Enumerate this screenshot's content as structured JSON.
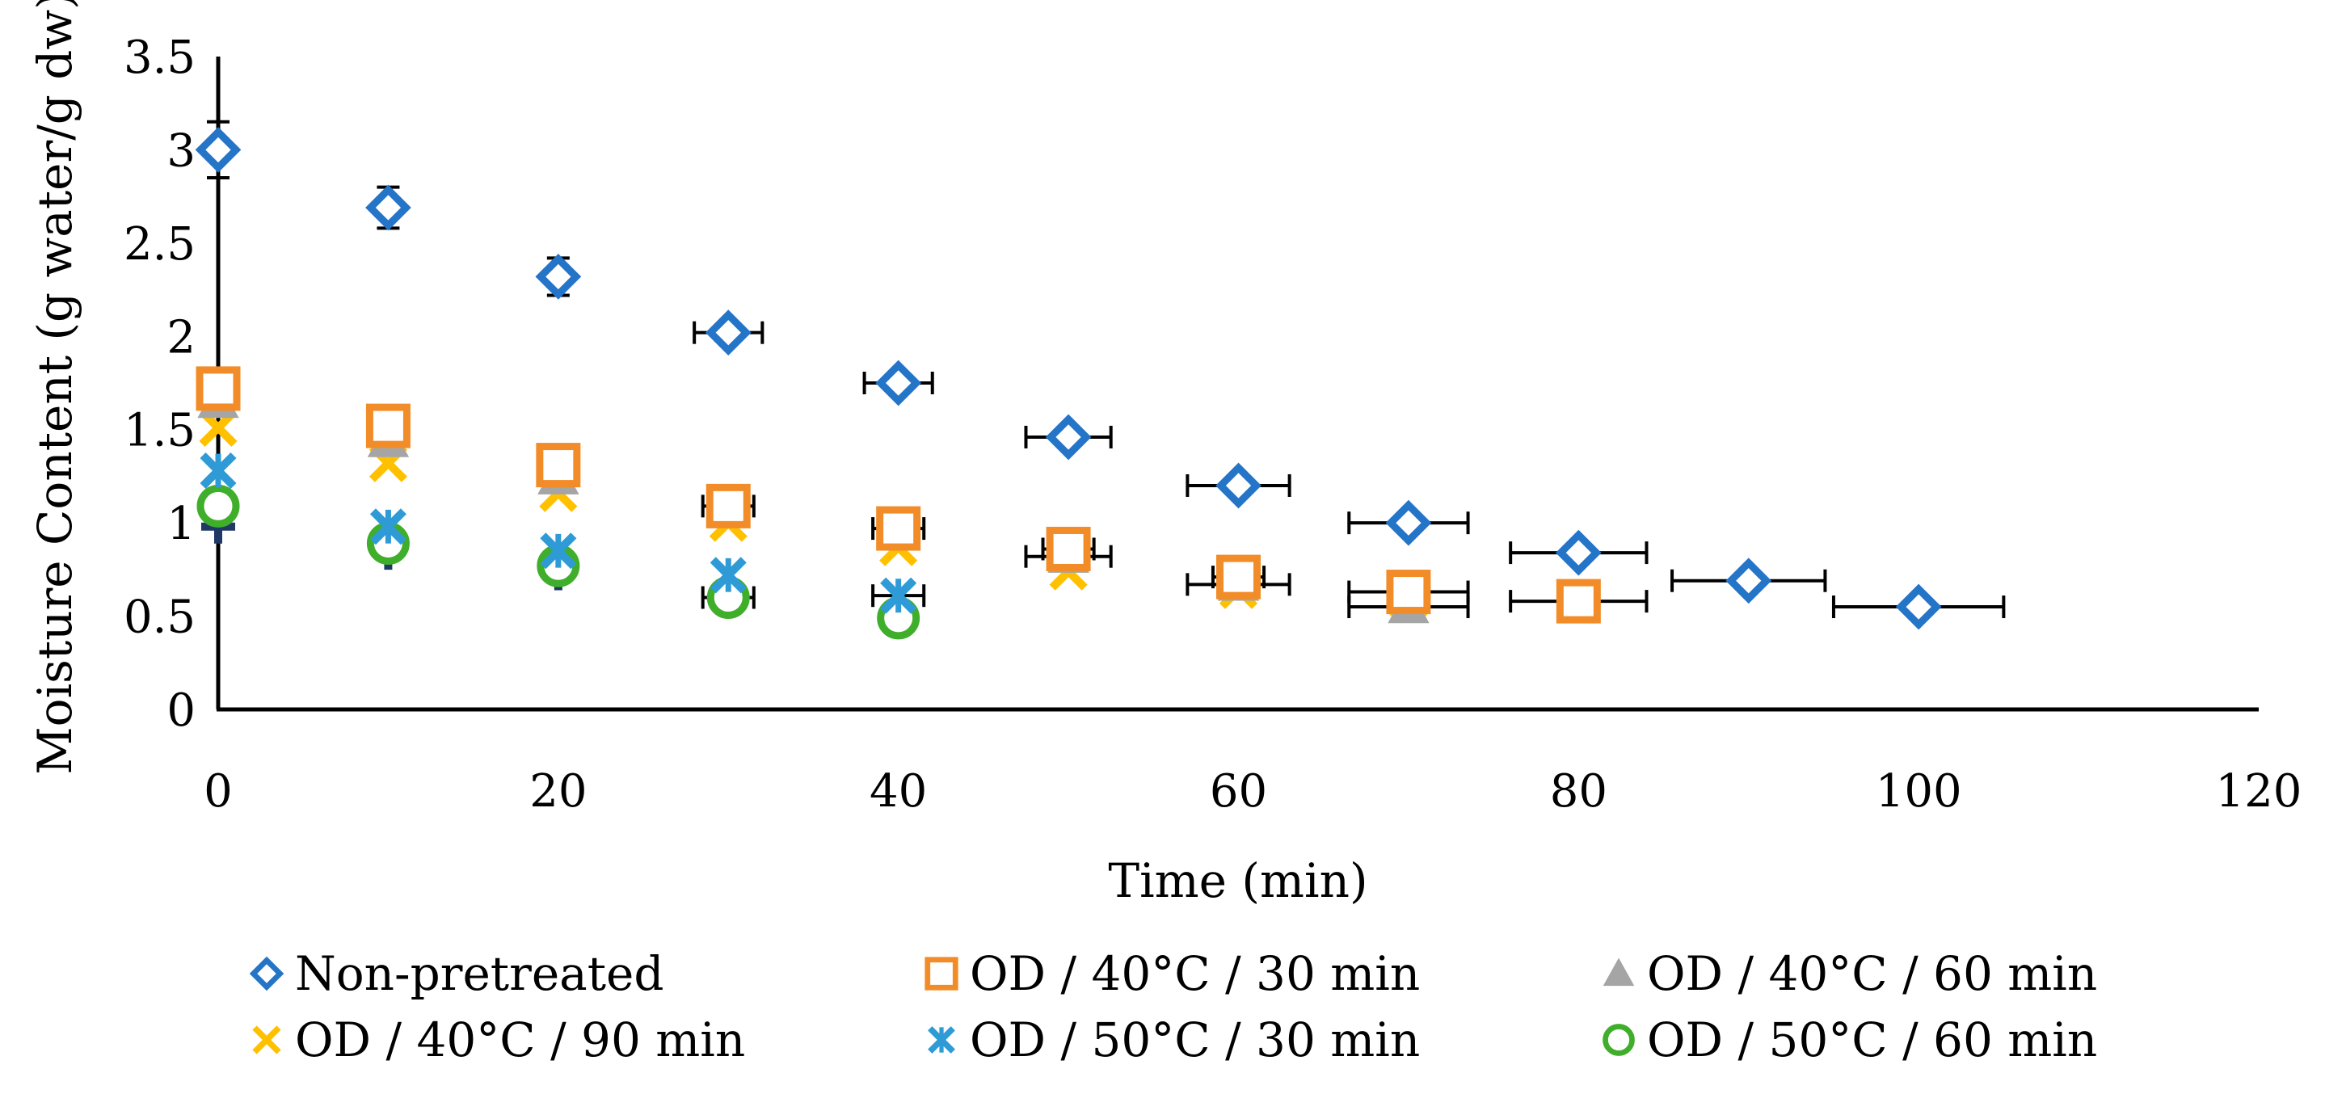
{
  "chart_data": {
    "type": "scatter",
    "title": "",
    "xlabel": "Time (min)",
    "ylabel": "Moisture Content (g water/g dw)",
    "xlim": [
      0,
      120
    ],
    "ylim": [
      0,
      3.5
    ],
    "x_ticks": [
      0,
      20,
      40,
      60,
      80,
      100,
      120
    ],
    "x_tick_labels": [
      "0",
      "20",
      "40",
      "60",
      "80",
      "100",
      "120"
    ],
    "y_ticks": [
      0,
      0.5,
      1,
      1.5,
      2,
      2.5,
      3,
      3.5
    ],
    "y_tick_labels": [
      "0",
      "0.5",
      "1",
      "1.5",
      "2",
      "2.5",
      "3",
      "3.5"
    ],
    "grid": false,
    "legend_position": "bottom",
    "series": [
      {
        "name": "Non-pretreated",
        "marker": "diamond",
        "color": "#2474C8",
        "show_in_legend": true,
        "points": [
          {
            "x": 0,
            "y": 3.0,
            "yerr": 0.15
          },
          {
            "x": 10,
            "y": 2.69,
            "yerr": 0.11
          },
          {
            "x": 20,
            "y": 2.32,
            "yerr": 0.1
          },
          {
            "x": 30,
            "y": 2.02,
            "xerr": 2
          },
          {
            "x": 40,
            "y": 1.75,
            "xerr": 2
          },
          {
            "x": 50,
            "y": 1.46,
            "xerr": 2.5
          },
          {
            "x": 60,
            "y": 1.2,
            "xerr": 3
          },
          {
            "x": 70,
            "y": 1.0,
            "xerr": 3.5
          },
          {
            "x": 80,
            "y": 0.84,
            "xerr": 4
          },
          {
            "x": 90,
            "y": 0.69,
            "xerr": 4.5
          },
          {
            "x": 100,
            "y": 0.55,
            "xerr": 5
          }
        ]
      },
      {
        "name": "OD / 40°C / 30 min",
        "marker": "square",
        "color": "#F28C28",
        "show_in_legend": true,
        "points": [
          {
            "x": 0,
            "y": 1.72
          },
          {
            "x": 10,
            "y": 1.52
          },
          {
            "x": 20,
            "y": 1.31
          },
          {
            "x": 30,
            "y": 1.09,
            "xerr": 1.5
          },
          {
            "x": 40,
            "y": 0.97,
            "xerr": 1.5
          },
          {
            "x": 50,
            "y": 0.86,
            "xerr": 1.5
          },
          {
            "x": 60,
            "y": 0.71,
            "xerr": 1.5
          },
          {
            "x": 70,
            "y": 0.63,
            "xerr": 3.5
          },
          {
            "x": 80,
            "y": 0.58,
            "xerr": 4
          }
        ]
      },
      {
        "name": "OD / 40°C / 60 min",
        "marker": "triangle",
        "color": "#A5A5A5",
        "show_in_legend": true,
        "points": [
          {
            "x": 0,
            "y": 1.65
          },
          {
            "x": 10,
            "y": 1.44
          },
          {
            "x": 20,
            "y": 1.24
          },
          {
            "x": 30,
            "y": 1.06
          },
          {
            "x": 40,
            "y": 0.94
          },
          {
            "x": 50,
            "y": 0.82,
            "xerr": 2.5
          },
          {
            "x": 60,
            "y": 0.67,
            "xerr": 3
          },
          {
            "x": 70,
            "y": 0.55,
            "xerr": 3.5
          }
        ]
      },
      {
        "name": "OD / 40°C / 90 min",
        "marker": "x",
        "color": "#FFC000",
        "show_in_legend": true,
        "points": [
          {
            "x": 0,
            "y": 1.51
          },
          {
            "x": 10,
            "y": 1.32
          },
          {
            "x": 20,
            "y": 1.16
          },
          {
            "x": 30,
            "y": 1.0
          },
          {
            "x": 40,
            "y": 0.87
          },
          {
            "x": 50,
            "y": 0.74
          },
          {
            "x": 60,
            "y": 0.64
          },
          {
            "x": 70,
            "y": 0.58
          }
        ]
      },
      {
        "name": "OD / 50°C / 30 min",
        "marker": "star",
        "color": "#2E9BD6",
        "show_in_legend": true,
        "points": [
          {
            "x": 0,
            "y": 1.28
          },
          {
            "x": 10,
            "y": 0.98
          },
          {
            "x": 20,
            "y": 0.85
          },
          {
            "x": 30,
            "y": 0.72
          },
          {
            "x": 40,
            "y": 0.61,
            "xerr": 1.5
          }
        ]
      },
      {
        "name": "OD / 50°C / 60 min",
        "marker": "circle",
        "color": "#3FAE2A",
        "show_in_legend": true,
        "points": [
          {
            "x": 0,
            "y": 1.09
          },
          {
            "x": 10,
            "y": 0.89
          },
          {
            "x": 20,
            "y": 0.77
          },
          {
            "x": 30,
            "y": 0.6,
            "xerr": 1.5
          },
          {
            "x": 40,
            "y": 0.49
          }
        ]
      },
      {
        "name": "",
        "marker": "plus",
        "color": "#1F3864",
        "show_in_legend": false,
        "points": [
          {
            "x": 0,
            "y": 0.98
          },
          {
            "x": 10,
            "y": 0.84
          },
          {
            "x": 20,
            "y": 0.73
          },
          {
            "x": 30,
            "y": 0.6
          }
        ]
      }
    ]
  }
}
